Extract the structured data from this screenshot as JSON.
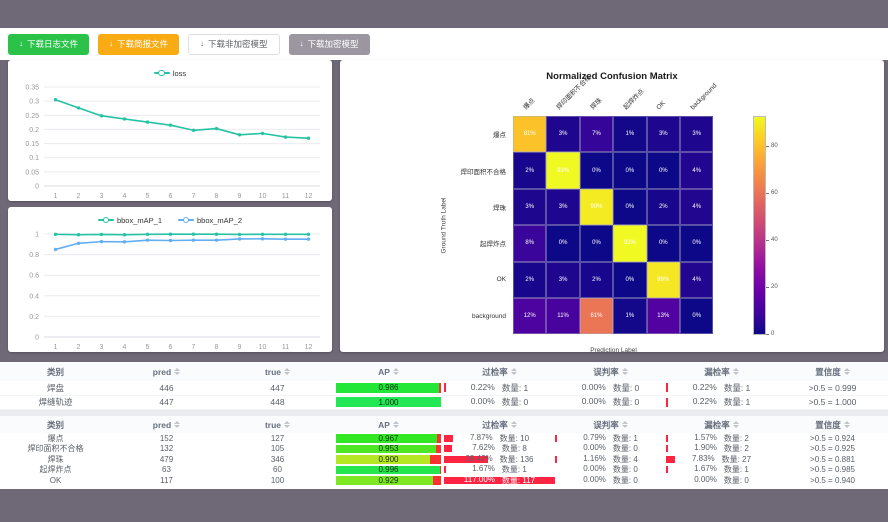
{
  "colors": {
    "page_bg": "#6f6977",
    "button_green": "#2bc24a",
    "button_orange": "#f9ab14",
    "button_gray": "#9b969f",
    "series_teal": "#25c2a3",
    "series_blue": "#62aef2",
    "rate_bar_red": "#ff2442",
    "ap_remainder_red": "#ff3030"
  },
  "toolbar": {
    "buttons": [
      {
        "name": "download-log",
        "label": "下载日志文件",
        "variant": "green"
      },
      {
        "name": "download-report",
        "label": "下载简报文件",
        "variant": "orange"
      },
      {
        "name": "download-unencrypted-model",
        "label": "下载非加密模型",
        "variant": "plain"
      },
      {
        "name": "download-encrypted-model",
        "label": "下载加密模型",
        "variant": "gray"
      }
    ]
  },
  "chart_data": [
    {
      "type": "line",
      "title": "",
      "x": [
        1,
        2,
        3,
        4,
        5,
        6,
        7,
        8,
        9,
        10,
        11,
        12
      ],
      "series": [
        {
          "name": "loss",
          "color": "#25c2a3",
          "values": [
            0.305,
            0.276,
            0.248,
            0.237,
            0.226,
            0.215,
            0.197,
            0.203,
            0.181,
            0.186,
            0.173,
            0.169
          ]
        }
      ],
      "ylim": [
        0,
        0.35
      ],
      "yticks": [
        0,
        0.05,
        0.1,
        0.15,
        0.2,
        0.25,
        0.3,
        0.35
      ],
      "grid": true,
      "legend_position": "top"
    },
    {
      "type": "line",
      "title": "",
      "x": [
        1,
        2,
        3,
        4,
        5,
        6,
        7,
        8,
        9,
        10,
        11,
        12
      ],
      "series": [
        {
          "name": "bbox_mAP_1",
          "color": "#25c2a3",
          "values": [
            0.997,
            0.993,
            0.996,
            0.993,
            0.997,
            0.998,
            0.998,
            0.998,
            0.996,
            0.997,
            0.997,
            0.997
          ]
        },
        {
          "name": "bbox_mAP_2",
          "color": "#62aef2",
          "values": [
            0.85,
            0.91,
            0.926,
            0.924,
            0.94,
            0.937,
            0.94,
            0.94,
            0.952,
            0.953,
            0.95,
            0.95
          ]
        }
      ],
      "ylim": [
        0,
        1
      ],
      "yticks": [
        0,
        0.2,
        0.4,
        0.6,
        0.8,
        1
      ],
      "grid": true,
      "legend_position": "top"
    },
    {
      "type": "heatmap",
      "title": "Normalized Confusion Matrix",
      "xlabel": "Prediction Label",
      "ylabel": "Ground Truth Label",
      "classes": [
        "爆点",
        "焊印面积不合格",
        "焊珠",
        "起焊炸点",
        "OK",
        "background"
      ],
      "matrix_percent": [
        [
          81,
          3,
          7,
          1,
          3,
          3
        ],
        [
          2,
          93,
          0,
          0,
          0,
          4
        ],
        [
          3,
          3,
          90,
          0,
          2,
          4
        ],
        [
          8,
          0,
          0,
          93,
          0,
          0
        ],
        [
          2,
          3,
          2,
          0,
          89,
          4
        ],
        [
          12,
          11,
          61,
          1,
          13,
          0
        ]
      ],
      "vmax": 93,
      "colorbar_ticks": [
        0,
        20,
        40,
        60,
        80
      ],
      "colormap": "plasma"
    }
  ],
  "tables": {
    "count_prefix": "数量:",
    "headers": [
      {
        "key": "class",
        "label": "类别",
        "sortable": false
      },
      {
        "key": "pred",
        "label": "pred",
        "sortable": true
      },
      {
        "key": "true",
        "label": "true",
        "sortable": true
      },
      {
        "key": "ap",
        "label": "AP",
        "sortable": true
      },
      {
        "key": "over",
        "label": "过检率",
        "sortable": true
      },
      {
        "key": "mis",
        "label": "误判率",
        "sortable": true
      },
      {
        "key": "miss",
        "label": "漏检率",
        "sortable": true
      },
      {
        "key": "conf",
        "label": "置信度",
        "sortable": true
      }
    ],
    "groups": [
      {
        "rows": [
          {
            "class": "焊盘",
            "pred": "446",
            "true": "447",
            "ap": 0.986,
            "over_rate": 0.22,
            "over_count": 1,
            "mis_rate": 0.0,
            "mis_count": 0,
            "miss_rate": 0.22,
            "miss_count": 1,
            "confidence": ">0.5 = 0.999"
          },
          {
            "class": "焊缝轨迹",
            "pred": "447",
            "true": "448",
            "ap": 1.0,
            "over_rate": 0.0,
            "over_count": 0,
            "mis_rate": 0.0,
            "mis_count": 0,
            "miss_rate": 0.22,
            "miss_count": 1,
            "confidence": ">0.5 = 1.000"
          }
        ]
      },
      {
        "rows": [
          {
            "class": "爆点",
            "pred": "152",
            "true": "127",
            "ap": 0.967,
            "over_rate": 7.87,
            "over_count": 10,
            "mis_rate": 0.79,
            "mis_count": 1,
            "miss_rate": 1.57,
            "miss_count": 2,
            "confidence": ">0.5 = 0.924"
          },
          {
            "class": "焊印面积不合格",
            "pred": "132",
            "true": "105",
            "ap": 0.953,
            "over_rate": 7.62,
            "over_count": 8,
            "mis_rate": 0.0,
            "mis_count": 0,
            "miss_rate": 1.9,
            "miss_count": 2,
            "confidence": ">0.5 = 0.925"
          },
          {
            "class": "焊珠",
            "pred": "479",
            "true": "346",
            "ap": 0.9,
            "over_rate": 39.42,
            "over_count": 136,
            "mis_rate": 1.16,
            "mis_count": 4,
            "miss_rate": 7.83,
            "miss_count": 27,
            "confidence": ">0.5 = 0.881"
          },
          {
            "class": "起焊炸点",
            "pred": "63",
            "true": "60",
            "ap": 0.996,
            "over_rate": 1.67,
            "over_count": 1,
            "mis_rate": 0.0,
            "mis_count": 0,
            "miss_rate": 1.67,
            "miss_count": 1,
            "confidence": ">0.5 = 0.985"
          },
          {
            "class": "OK",
            "pred": "117",
            "true": "100",
            "ap": 0.929,
            "over_rate": 117.0,
            "over_count": 117,
            "mis_rate": 0.0,
            "mis_count": 0,
            "miss_rate": 0.0,
            "miss_count": 0,
            "confidence": ">0.5 = 0.940"
          }
        ]
      }
    ]
  }
}
